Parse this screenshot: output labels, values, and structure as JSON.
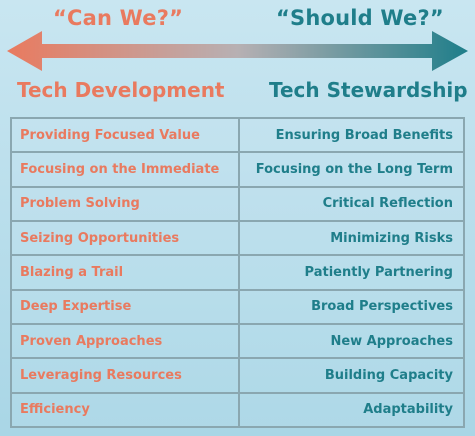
{
  "header": {
    "left_question": "“Can We?”",
    "right_question": "“Should We?”",
    "left_heading": "Tech Development",
    "right_heading": "Tech Stewardship"
  },
  "colors": {
    "development": "#e97a5f",
    "stewardship": "#1f7e8a"
  },
  "rows": [
    {
      "development": "Providing Focused Value",
      "stewardship": "Ensuring Broad Benefits"
    },
    {
      "development": "Focusing on the Immediate",
      "stewardship": "Focusing on  the Long Term"
    },
    {
      "development": "Problem Solving",
      "stewardship": "Critical Reflection"
    },
    {
      "development": "Seizing Opportunities",
      "stewardship": "Minimizing Risks"
    },
    {
      "development": "Blazing a Trail",
      "stewardship": "Patiently Partnering"
    },
    {
      "development": "Deep Expertise",
      "stewardship": "Broad Perspectives"
    },
    {
      "development": "Proven Approaches",
      "stewardship": "New Approaches"
    },
    {
      "development": "Leveraging Resources",
      "stewardship": "Building Capacity"
    },
    {
      "development": "Efficiency",
      "stewardship": "Adaptability"
    }
  ]
}
